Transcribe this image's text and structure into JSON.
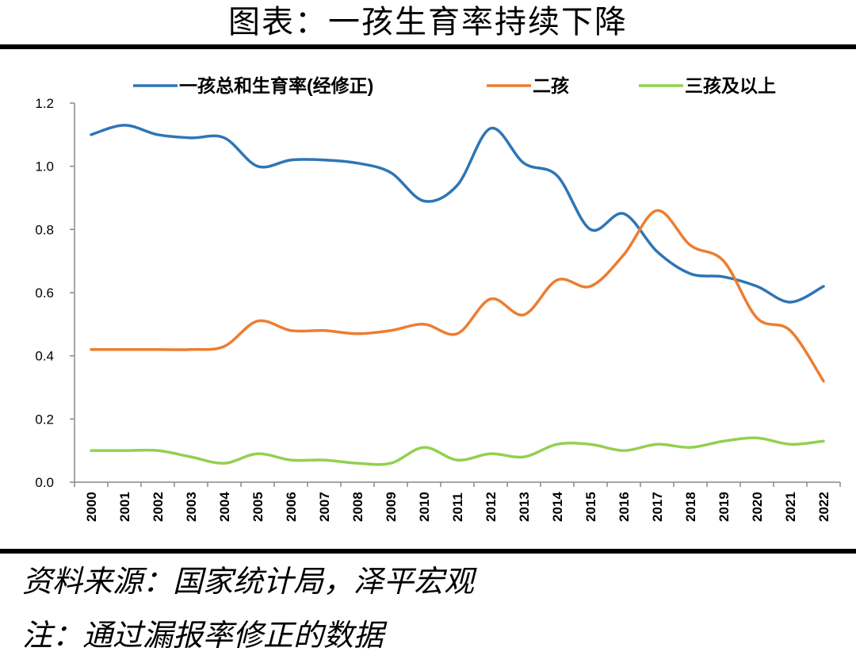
{
  "header": {
    "title": "图表：一孩生育率持续下降"
  },
  "footer": {
    "source": "资料来源：国家统计局，泽平宏观",
    "note": "注：通过漏报率修正的数据"
  },
  "chart_data": {
    "type": "line",
    "title": "",
    "xlabel": "",
    "ylabel": "",
    "ylim": [
      0,
      1.2
    ],
    "yticks": [
      "0.0",
      "0.2",
      "0.4",
      "0.6",
      "0.8",
      "1.0",
      "1.2"
    ],
    "x": [
      "2000",
      "2001",
      "2002",
      "2003",
      "2004",
      "2005",
      "2006",
      "2007",
      "2008",
      "2009",
      "2010",
      "2011",
      "2012",
      "2013",
      "2014",
      "2015",
      "2016",
      "2017",
      "2018",
      "2019",
      "2020",
      "2021",
      "2022"
    ],
    "legend_position": "top",
    "grid": false,
    "series": [
      {
        "name": "一孩总和生育率(经修正)",
        "color": "#2E75B6",
        "values": [
          1.1,
          1.13,
          1.1,
          1.09,
          1.09,
          1.0,
          1.02,
          1.02,
          1.01,
          0.98,
          0.89,
          0.94,
          1.12,
          1.01,
          0.97,
          0.8,
          0.85,
          0.73,
          0.66,
          0.65,
          0.62,
          0.57,
          0.62
        ]
      },
      {
        "name": "二孩",
        "color": "#ED7D31",
        "values": [
          0.42,
          0.42,
          0.42,
          0.42,
          0.43,
          0.51,
          0.48,
          0.48,
          0.47,
          0.48,
          0.5,
          0.47,
          0.58,
          0.53,
          0.64,
          0.62,
          0.72,
          0.86,
          0.75,
          0.7,
          0.52,
          0.48,
          0.32
        ]
      },
      {
        "name": "三孩及以上",
        "color": "#92D050",
        "values": [
          0.1,
          0.1,
          0.1,
          0.08,
          0.06,
          0.09,
          0.07,
          0.07,
          0.06,
          0.06,
          0.11,
          0.07,
          0.09,
          0.08,
          0.12,
          0.12,
          0.1,
          0.12,
          0.11,
          0.13,
          0.14,
          0.12,
          0.13
        ]
      }
    ]
  }
}
